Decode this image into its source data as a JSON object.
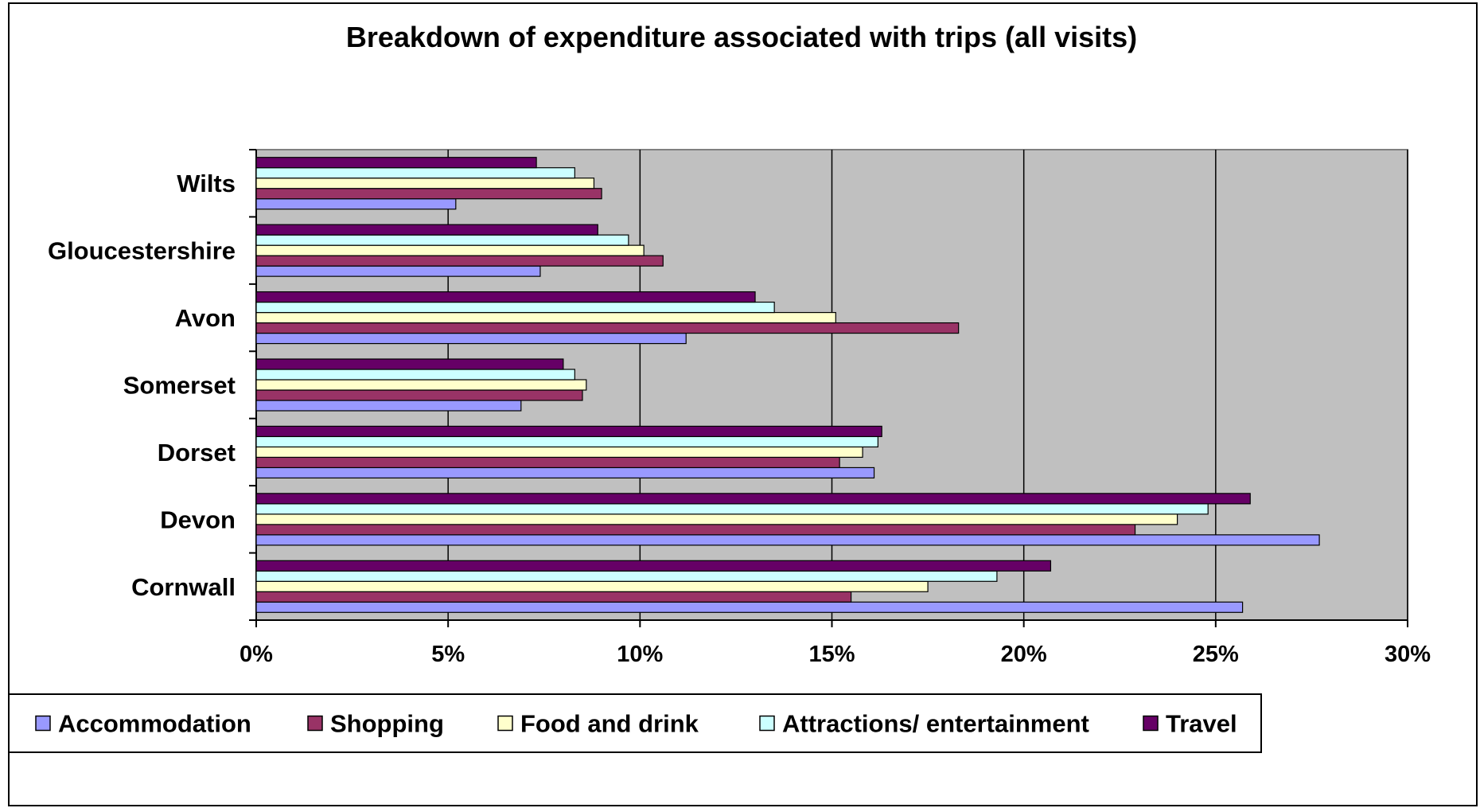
{
  "chart_data": {
    "type": "bar",
    "orientation": "horizontal",
    "title": "Breakdown of expenditure associated with trips (all visits)",
    "xlabel": "",
    "ylabel": "",
    "categories": [
      "Cornwall",
      "Devon",
      "Dorset",
      "Somerset",
      "Avon",
      "Gloucestershire",
      "Wilts"
    ],
    "series": [
      {
        "name": "Accommodation",
        "color": "#9999FF",
        "values": [
          25.7,
          27.7,
          16.1,
          6.9,
          11.2,
          7.4,
          5.2
        ]
      },
      {
        "name": "Shopping",
        "color": "#993366",
        "values": [
          15.5,
          22.9,
          15.2,
          8.5,
          18.3,
          10.6,
          9.0
        ]
      },
      {
        "name": "Food and drink",
        "color": "#FFFFCC",
        "values": [
          17.5,
          24.0,
          15.8,
          8.6,
          15.1,
          10.1,
          8.8
        ]
      },
      {
        "name": "Attractions/ entertainment",
        "color": "#CCFFFF",
        "values": [
          19.3,
          24.8,
          16.2,
          8.3,
          13.5,
          9.7,
          8.3
        ]
      },
      {
        "name": "Travel",
        "color": "#660066",
        "values": [
          20.7,
          25.9,
          16.3,
          8.0,
          13.0,
          8.9,
          7.3
        ]
      }
    ],
    "xlim": [
      0,
      30
    ],
    "xticks": [
      "0%",
      "5%",
      "10%",
      "15%",
      "20%",
      "25%",
      "30%"
    ],
    "xtick_values": [
      0,
      5,
      10,
      15,
      20,
      25,
      30
    ],
    "grid": true,
    "plot_background": "#C0C0C0",
    "legend_position": "bottom"
  }
}
